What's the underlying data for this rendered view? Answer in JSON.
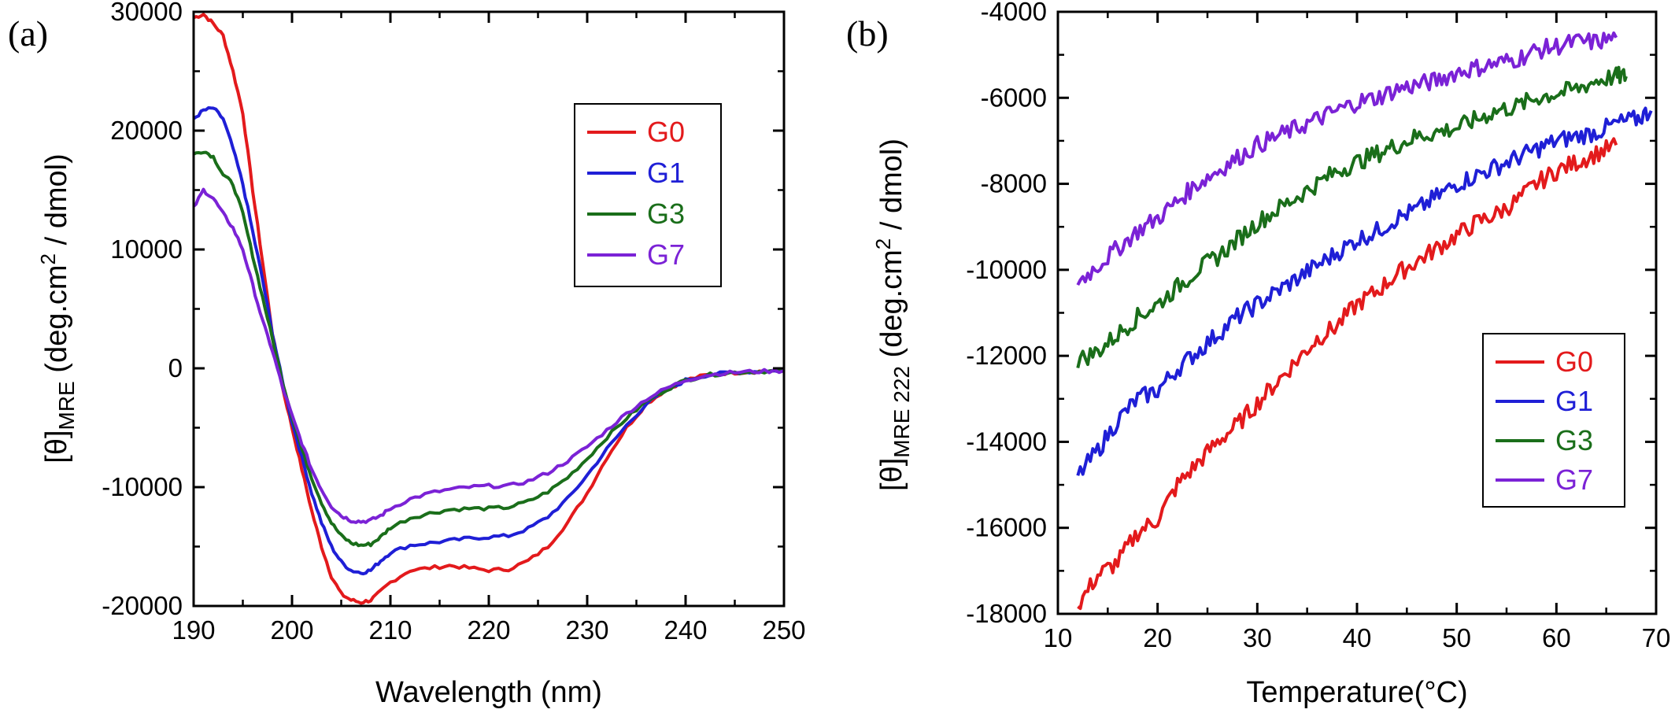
{
  "chart_data": [
    {
      "panel_label": "(a)",
      "type": "line",
      "xlabel": "Wavelength (nm)",
      "ylabel": {
        "main": "[θ]",
        "sub": "MRE",
        "rest": " (deg.cm",
        "sup": "2",
        "end": " / dmol)"
      },
      "xlim": [
        190,
        250
      ],
      "ylim": [
        -20000,
        30000
      ],
      "xticks": [
        190,
        200,
        210,
        220,
        230,
        240,
        250
      ],
      "yticks": [
        -20000,
        -10000,
        0,
        10000,
        20000,
        30000
      ],
      "legend_position": "top-right",
      "series": [
        {
          "name": "G0",
          "color": "#e31a1c",
          "x": [
            190,
            191,
            192,
            193,
            194,
            195,
            196,
            197,
            198,
            199,
            200,
            201,
            202,
            203,
            204,
            205,
            206,
            207,
            208,
            209,
            210,
            212,
            214,
            216,
            218,
            220,
            222,
            224,
            226,
            228,
            230,
            232,
            234,
            236,
            238,
            240,
            242,
            244,
            246,
            248,
            250
          ],
          "y": [
            29500,
            29800,
            29000,
            28000,
            25000,
            21500,
            15000,
            9000,
            3000,
            -1500,
            -5000,
            -8500,
            -12000,
            -15000,
            -17500,
            -19000,
            -19500,
            -19700,
            -19500,
            -18800,
            -18000,
            -17000,
            -16800,
            -16600,
            -16800,
            -17000,
            -16900,
            -16200,
            -15000,
            -13000,
            -10500,
            -7500,
            -5000,
            -3000,
            -1800,
            -1000,
            -600,
            -400,
            -300,
            -250,
            -200
          ]
        },
        {
          "name": "G1",
          "color": "#1f1fd6",
          "x": [
            190,
            191,
            192,
            193,
            194,
            195,
            196,
            197,
            198,
            199,
            200,
            201,
            202,
            203,
            204,
            205,
            206,
            207,
            208,
            209,
            210,
            212,
            214,
            216,
            218,
            220,
            222,
            224,
            226,
            228,
            230,
            232,
            234,
            236,
            238,
            240,
            242,
            244,
            246,
            248,
            250
          ],
          "y": [
            21000,
            21700,
            21900,
            21000,
            18500,
            15500,
            11500,
            7500,
            3000,
            -1000,
            -4500,
            -7500,
            -10500,
            -13000,
            -15000,
            -16300,
            -17000,
            -17200,
            -17000,
            -16200,
            -15500,
            -14900,
            -14700,
            -14500,
            -14300,
            -14200,
            -14100,
            -13500,
            -12500,
            -11000,
            -9000,
            -6800,
            -4800,
            -3000,
            -1900,
            -1000,
            -600,
            -400,
            -300,
            -250,
            -200
          ]
        },
        {
          "name": "G3",
          "color": "#1a6e1a",
          "x": [
            190,
            191,
            192,
            193,
            194,
            195,
            196,
            197,
            198,
            199,
            200,
            201,
            202,
            203,
            204,
            205,
            206,
            207,
            208,
            209,
            210,
            212,
            214,
            216,
            218,
            220,
            222,
            224,
            226,
            228,
            230,
            232,
            234,
            236,
            238,
            240,
            242,
            244,
            246,
            248,
            250
          ],
          "y": [
            18000,
            18300,
            17800,
            16300,
            15500,
            13000,
            9500,
            6000,
            2500,
            -1000,
            -4000,
            -6800,
            -9200,
            -11300,
            -13000,
            -14100,
            -14700,
            -14900,
            -14800,
            -14200,
            -13400,
            -12600,
            -12200,
            -11900,
            -11800,
            -11800,
            -11700,
            -11200,
            -10400,
            -9200,
            -7600,
            -5800,
            -4200,
            -2800,
            -1800,
            -1000,
            -600,
            -400,
            -300,
            -250,
            -200
          ]
        },
        {
          "name": "G7",
          "color": "#7b22d6",
          "x": [
            190,
            191,
            192,
            193,
            194,
            195,
            196,
            197,
            198,
            199,
            200,
            201,
            202,
            203,
            204,
            205,
            206,
            207,
            208,
            209,
            210,
            212,
            214,
            216,
            218,
            220,
            222,
            224,
            226,
            228,
            230,
            232,
            234,
            236,
            238,
            240,
            242,
            244,
            246,
            248,
            250
          ],
          "y": [
            13500,
            15000,
            14300,
            13000,
            11800,
            10000,
            7000,
            4000,
            1500,
            -1500,
            -4000,
            -6300,
            -8500,
            -10200,
            -11600,
            -12400,
            -12800,
            -12900,
            -12800,
            -12400,
            -11800,
            -11000,
            -10500,
            -10200,
            -10000,
            -9900,
            -9900,
            -9500,
            -8800,
            -7800,
            -6600,
            -5200,
            -3800,
            -2600,
            -1700,
            -1000,
            -600,
            -400,
            -300,
            -250,
            -200
          ]
        }
      ]
    },
    {
      "panel_label": "(b)",
      "type": "line",
      "xlabel": "Temperature(°C)",
      "ylabel": {
        "main": "[θ]",
        "sub": "MRE 222",
        "rest": " (deg.cm",
        "sup": "2",
        "end": " / dmol)"
      },
      "xlim": [
        10,
        70
      ],
      "ylim": [
        -18000,
        -4000
      ],
      "xticks": [
        10,
        20,
        30,
        40,
        50,
        60,
        70
      ],
      "yticks": [
        -18000,
        -16000,
        -14000,
        -12000,
        -10000,
        -8000,
        -6000,
        -4000
      ],
      "legend_position": "bottom-right",
      "series": [
        {
          "name": "G0",
          "color": "#e31a1c",
          "x": [
            12,
            14,
            16,
            18,
            20,
            22,
            24,
            26,
            28,
            30,
            32,
            34,
            36,
            38,
            40,
            42,
            44,
            46,
            48,
            50,
            52,
            54,
            56,
            58,
            60,
            62,
            64,
            66
          ],
          "y": [
            -17800,
            -17100,
            -16800,
            -16100,
            -15800,
            -15000,
            -14500,
            -14000,
            -13600,
            -13100,
            -12600,
            -12100,
            -11600,
            -11300,
            -10800,
            -10500,
            -10100,
            -9800,
            -9500,
            -9200,
            -8900,
            -8700,
            -8400,
            -8000,
            -7700,
            -7500,
            -7300,
            -7100
          ]
        },
        {
          "name": "G1",
          "color": "#1f1fd6",
          "x": [
            12,
            14,
            16,
            18,
            20,
            22,
            24,
            26,
            28,
            30,
            32,
            34,
            36,
            38,
            40,
            42,
            44,
            46,
            48,
            50,
            52,
            54,
            56,
            58,
            60,
            62,
            64,
            66,
            68,
            69.5
          ],
          "y": [
            -14800,
            -14200,
            -13500,
            -13000,
            -12800,
            -12300,
            -11900,
            -11500,
            -11100,
            -10800,
            -10500,
            -10200,
            -9900,
            -9600,
            -9300,
            -9100,
            -8800,
            -8600,
            -8300,
            -8000,
            -7800,
            -7600,
            -7400,
            -7200,
            -7000,
            -6900,
            -6800,
            -6600,
            -6500,
            -6300
          ]
        },
        {
          "name": "G3",
          "color": "#1a6e1a",
          "x": [
            12,
            14,
            16,
            18,
            20,
            22,
            24,
            26,
            28,
            30,
            32,
            34,
            36,
            38,
            40,
            42,
            44,
            46,
            48,
            50,
            52,
            54,
            56,
            58,
            60,
            62,
            64,
            66,
            67
          ],
          "y": [
            -12100,
            -11900,
            -11500,
            -11100,
            -10800,
            -10400,
            -10000,
            -9700,
            -9300,
            -8900,
            -8600,
            -8300,
            -8000,
            -7700,
            -7500,
            -7300,
            -7100,
            -6900,
            -6800,
            -6700,
            -6500,
            -6300,
            -6200,
            -6000,
            -5900,
            -5800,
            -5600,
            -5500,
            -5500
          ]
        },
        {
          "name": "G7",
          "color": "#7b22d6",
          "x": [
            12,
            14,
            16,
            18,
            20,
            22,
            24,
            26,
            28,
            30,
            32,
            34,
            36,
            38,
            40,
            42,
            44,
            46,
            48,
            50,
            52,
            54,
            56,
            58,
            60,
            62,
            64,
            66
          ],
          "y": [
            -10300,
            -9900,
            -9500,
            -9100,
            -8800,
            -8400,
            -8000,
            -7700,
            -7400,
            -7100,
            -6900,
            -6700,
            -6500,
            -6300,
            -6100,
            -6000,
            -5800,
            -5700,
            -5600,
            -5400,
            -5300,
            -5200,
            -5100,
            -4900,
            -4800,
            -4700,
            -4700,
            -4600
          ]
        }
      ]
    }
  ]
}
